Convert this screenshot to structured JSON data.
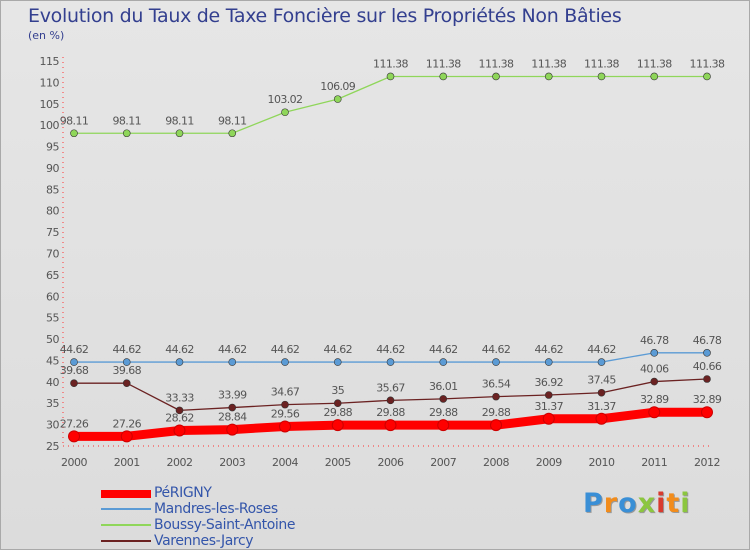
{
  "title": "Evolution du Taux de Taxe Foncière sur les Propriétés Non Bâties",
  "unit_label": "(en %)",
  "brand": {
    "text": "Proxiti",
    "letters": [
      "P",
      "r",
      "o",
      "x",
      "i",
      "t",
      "i"
    ],
    "colors": [
      "#3a8fd6",
      "#f28c1b",
      "#3a8fd6",
      "#8cc63f",
      "#d83a2e",
      "#f28c1b",
      "#8cc63f"
    ]
  },
  "chart_data": {
    "type": "line",
    "title": "Evolution du Taux de Taxe Foncière sur les Propriétés Non Bâties",
    "ylabel": "(en %)",
    "xlabel": "",
    "x": [
      "2000",
      "2001",
      "2002",
      "2003",
      "2004",
      "2005",
      "2006",
      "2007",
      "2008",
      "2009",
      "2010",
      "2011",
      "2012"
    ],
    "ylim": [
      25,
      115
    ],
    "yticks": [
      25,
      30,
      35,
      40,
      45,
      50,
      55,
      60,
      65,
      70,
      75,
      80,
      85,
      90,
      95,
      100,
      105,
      110,
      115
    ],
    "grid": false,
    "legend_position": "bottom-left",
    "series": [
      {
        "name": "PéRIGNY",
        "color": "#ff0000",
        "values": [
          27.26,
          27.26,
          28.62,
          28.84,
          29.56,
          29.88,
          29.88,
          29.88,
          29.88,
          31.37,
          31.37,
          32.89,
          32.89
        ],
        "labels": [
          "27.26",
          "27.26",
          "28.62",
          "28.84",
          "29.56",
          "29.88",
          "29.88",
          "29.88",
          "29.88",
          "31.37",
          "31.37",
          "32.89",
          "32.89"
        ]
      },
      {
        "name": "Mandres-les-Roses",
        "color": "#5b9bd5",
        "values": [
          44.62,
          44.62,
          44.62,
          44.62,
          44.62,
          44.62,
          44.62,
          44.62,
          44.62,
          44.62,
          44.62,
          46.78,
          46.78
        ],
        "labels": [
          "44.62",
          "44.62",
          "44.62",
          "44.62",
          "44.62",
          "44.62",
          "44.62",
          "44.62",
          "44.62",
          "44.62",
          "44.62",
          "46.78",
          "46.78"
        ]
      },
      {
        "name": "Boussy-Saint-Antoine",
        "color": "#8fd65a",
        "values": [
          98.11,
          98.11,
          98.11,
          98.11,
          103.02,
          106.09,
          111.38,
          111.38,
          111.38,
          111.38,
          111.38,
          111.38,
          111.38
        ],
        "labels": [
          "98.11",
          "98.11",
          "98.11",
          "98.11",
          "103.02",
          "106.09",
          "111.38",
          "111.38",
          "111.38",
          "111.38",
          "111.38",
          "111.38",
          "111.38"
        ]
      },
      {
        "name": "Varennes-Jarcy",
        "color": "#6b2222",
        "values": [
          39.68,
          39.68,
          33.33,
          33.99,
          34.67,
          35,
          35.67,
          36.01,
          36.54,
          36.92,
          37.45,
          40.06,
          40.66
        ],
        "labels": [
          "39.68",
          "39.68",
          "33.33",
          "33.99",
          "34.67",
          "35",
          "35.67",
          "36.01",
          "36.54",
          "36.92",
          "37.45",
          "40.06",
          "40.66"
        ]
      }
    ]
  }
}
